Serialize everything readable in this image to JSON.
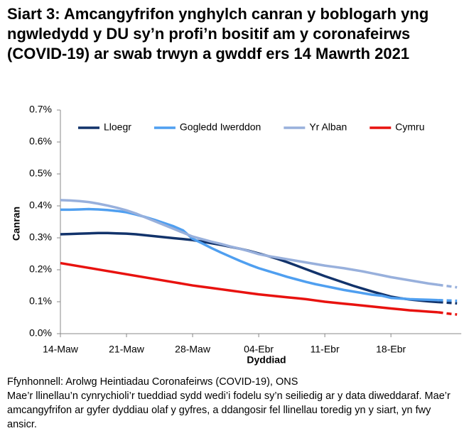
{
  "chart_data": {
    "type": "line",
    "title": "Siart 3: Amcangyfrifon ynghylch canran y boblogarh yng ngwledydd y DU sy’n profi’n bositif am y coronafeirws (COVID-19) ar swab trwyn a gwddf ers 14 Mawrth 2021",
    "x_label": "Dyddiad",
    "y_label": "Canran",
    "source": "Ffynhonnell: Arolwg Heintiadau Coronafeirws (COVID-19), ONS",
    "note": "Mae’r llinellau’n cynrychioli’r tueddiad sydd wedi’i fodelu sy’n seiliedig ar y data diweddaraf. Mae’r amcangyfrifon ar gyfer dyddiau olaf y gyfres, a ddangosir fel llinellau toredig yn y siart, yn fwy ansicr.",
    "categories": [
      "14-Maw",
      null,
      null,
      null,
      null,
      null,
      null,
      "21-Maw",
      null,
      null,
      null,
      null,
      null,
      null,
      "28-Maw",
      null,
      null,
      null,
      null,
      null,
      null,
      "04-Ebr",
      null,
      null,
      null,
      null,
      null,
      null,
      "11-Ebr",
      null,
      null,
      null,
      null,
      null,
      null,
      "18-Ebr",
      null,
      null,
      null,
      null,
      null,
      null,
      null
    ],
    "ylim": [
      0,
      0.7
    ],
    "yticks": [
      {
        "value": 0,
        "label": "0.0%"
      },
      {
        "value": 0.1,
        "label": "0.1%"
      },
      {
        "value": 0.2,
        "label": "0.2%"
      },
      {
        "value": 0.3,
        "label": "0.3%"
      },
      {
        "value": 0.4,
        "label": "0.4%"
      },
      {
        "value": 0.5,
        "label": "0.5%"
      },
      {
        "value": 0.6,
        "label": "0.6%"
      },
      {
        "value": 0.7,
        "label": "0.7%"
      }
    ],
    "grid": false,
    "legend": "top",
    "dashed_from": 40,
    "series": [
      {
        "name": "Lloegr",
        "color": "#12336b",
        "values": [
          0.311,
          0.312,
          0.313,
          0.314,
          0.315,
          0.315,
          0.314,
          0.313,
          0.311,
          0.308,
          0.305,
          0.302,
          0.299,
          0.296,
          0.293,
          0.288,
          0.283,
          0.278,
          0.272,
          0.266,
          0.259,
          0.251,
          0.243,
          0.234,
          0.224,
          0.213,
          0.202,
          0.191,
          0.18,
          0.17,
          0.16,
          0.15,
          0.141,
          0.132,
          0.124,
          0.116,
          0.111,
          0.107,
          0.104,
          0.101,
          0.099,
          0.097,
          0.095
        ]
      },
      {
        "name": "Gogledd Iwerddon",
        "color": "#4f9ff0",
        "values": [
          0.388,
          0.388,
          0.389,
          0.39,
          0.389,
          0.387,
          0.384,
          0.38,
          0.373,
          0.365,
          0.356,
          0.346,
          0.336,
          0.323,
          0.297,
          0.283,
          0.268,
          0.254,
          0.241,
          0.228,
          0.216,
          0.205,
          0.196,
          0.187,
          0.178,
          0.17,
          0.162,
          0.155,
          0.149,
          0.143,
          0.137,
          0.132,
          0.127,
          0.122,
          0.119,
          0.112,
          0.11,
          0.108,
          0.107,
          0.106,
          0.105,
          0.104,
          0.103
        ]
      },
      {
        "name": "Yr Alban",
        "color": "#98b0dc",
        "values": [
          0.418,
          0.417,
          0.415,
          0.412,
          0.407,
          0.401,
          0.394,
          0.386,
          0.376,
          0.364,
          0.352,
          0.34,
          0.328,
          0.316,
          0.304,
          0.296,
          0.288,
          0.281,
          0.273,
          0.266,
          0.258,
          0.249,
          0.243,
          0.238,
          0.233,
          0.228,
          0.223,
          0.218,
          0.213,
          0.209,
          0.205,
          0.2,
          0.195,
          0.189,
          0.183,
          0.177,
          0.172,
          0.167,
          0.162,
          0.157,
          0.153,
          0.149,
          0.145
        ]
      },
      {
        "name": "Cymru",
        "color": "#e8120f",
        "values": [
          0.221,
          0.216,
          0.211,
          0.206,
          0.201,
          0.196,
          0.191,
          0.186,
          0.181,
          0.176,
          0.171,
          0.166,
          0.161,
          0.156,
          0.151,
          0.147,
          0.143,
          0.139,
          0.135,
          0.131,
          0.127,
          0.123,
          0.12,
          0.117,
          0.114,
          0.111,
          0.108,
          0.104,
          0.1,
          0.097,
          0.094,
          0.091,
          0.088,
          0.085,
          0.082,
          0.079,
          0.076,
          0.073,
          0.071,
          0.069,
          0.067,
          0.063,
          0.06
        ]
      }
    ]
  }
}
